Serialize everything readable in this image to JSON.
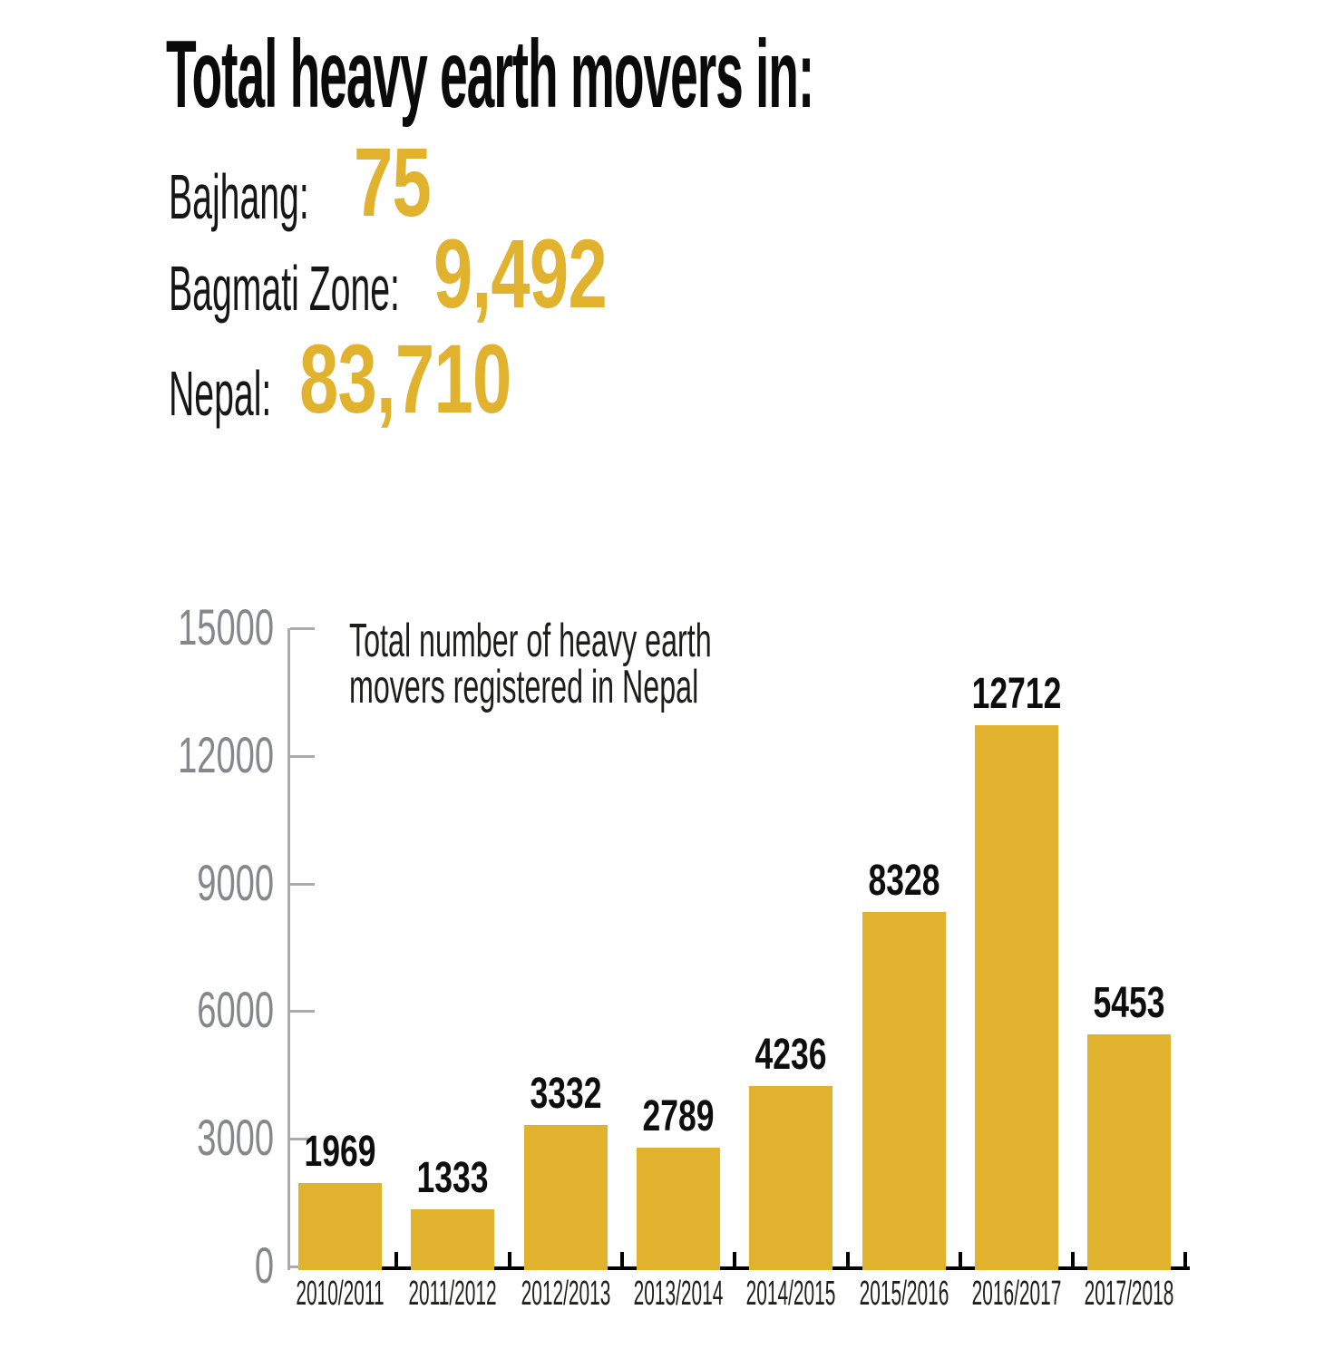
{
  "header": {
    "title": "Total heavy earth movers in:",
    "stats": [
      {
        "name": "bajhang",
        "label": "Bajhang:",
        "value": "75"
      },
      {
        "name": "bagmati-zone",
        "label": "Bagmati Zone:",
        "value": "9,492"
      },
      {
        "name": "nepal",
        "label": "Nepal:",
        "value": "83,710"
      }
    ]
  },
  "chart_data": {
    "type": "bar",
    "title": "Total number of heavy earth movers registered in Nepal",
    "title_lines": [
      "Total number of heavy earth",
      "movers registered in Nepal"
    ],
    "categories": [
      "2010/2011",
      "2011/2012",
      "2012/2013",
      "2013/2014",
      "2014/2015",
      "2015/2016",
      "2016/2017",
      "2017/2018"
    ],
    "values": [
      1969,
      1333,
      3332,
      2789,
      4236,
      8328,
      12712,
      5453
    ],
    "xlabel": "",
    "ylabel": "",
    "ylim": [
      0,
      15000
    ],
    "yticks": [
      0,
      3000,
      6000,
      9000,
      12000,
      15000
    ],
    "bar_color": "#E1B22E",
    "value_labels_shown": true,
    "grid": false,
    "legend": "none"
  },
  "colors": {
    "accent_gold": "#E1B22E",
    "axis_line_gray": "#ABABAB",
    "y_label_gray": "#85878C",
    "x_axis_black": "#000000",
    "text_black": "#0a0a0a"
  }
}
